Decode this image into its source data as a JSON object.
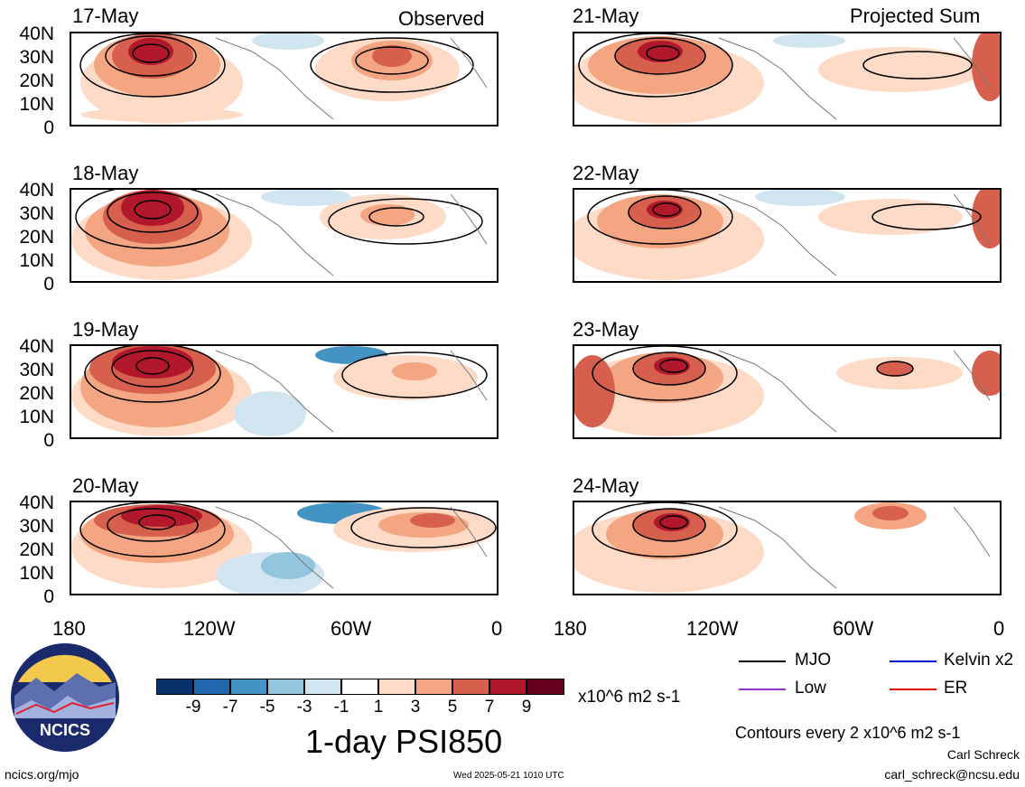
{
  "left_column_title": "Observed",
  "right_column_title": "Projected Sum",
  "left_dates": [
    "17-May",
    "18-May",
    "19-May",
    "20-May"
  ],
  "right_dates": [
    "21-May",
    "22-May",
    "23-May",
    "24-May"
  ],
  "y_labels": [
    "40N",
    "30N",
    "20N",
    "10N",
    "0"
  ],
  "x_labels": [
    "180",
    "120W",
    "60W",
    "0"
  ],
  "colorbar": {
    "colors": [
      "#08306b",
      "#2166ac",
      "#4393c3",
      "#92c5de",
      "#d1e5f0",
      "#ffffff",
      "#fddbc7",
      "#f4a582",
      "#d6604d",
      "#b2182b",
      "#67001f"
    ],
    "labels": [
      "-9",
      "-7",
      "-5",
      "-3",
      "-1",
      "1",
      "3",
      "5",
      "7",
      "9"
    ],
    "units": "x10^6 m2 s-1"
  },
  "field_title": "1-day PSI850",
  "legend": {
    "mjo": "MJO",
    "kelvin": "Kelvin x2",
    "low": "Low",
    "er": "ER",
    "colors": {
      "mjo": "#000000",
      "kelvin": "#0000cc",
      "low": "#9933cc",
      "er": "#dd0000"
    }
  },
  "contour_note": "Contours every 2 x10^6 m2 s-1",
  "author": "Carl Schreck",
  "email": "carl_schreck@ncsu.edu",
  "site": "ncics.org/mjo",
  "timestamp": "Wed 2025-05-21 1010 UTC",
  "logo_text": "NCICS"
}
